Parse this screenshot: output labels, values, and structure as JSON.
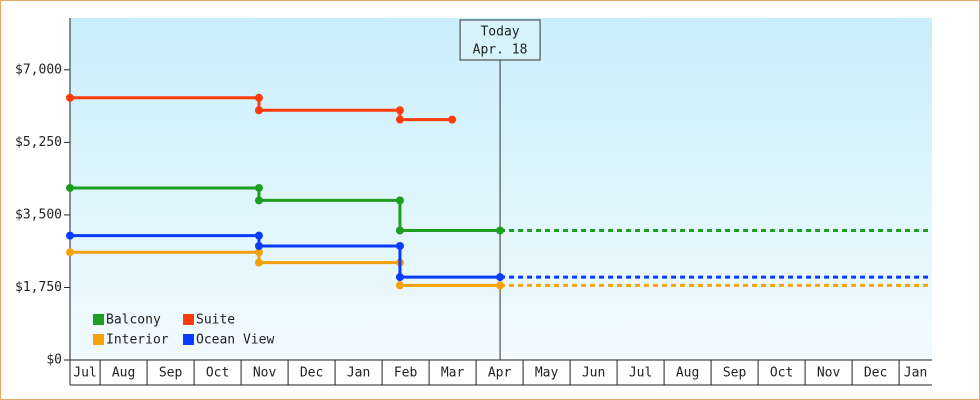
{
  "chart_data": {
    "type": "step-line",
    "xlim": [
      0.36,
      18.7
    ],
    "xticks": [
      {
        "value": 0.5,
        "label": "Jul"
      },
      {
        "value": 1.5,
        "label": "Aug"
      },
      {
        "value": 2.5,
        "label": "Sep"
      },
      {
        "value": 3.5,
        "label": "Oct"
      },
      {
        "value": 4.5,
        "label": "Nov"
      },
      {
        "value": 5.5,
        "label": "Dec"
      },
      {
        "value": 6.5,
        "label": "Jan"
      },
      {
        "value": 7.5,
        "label": "Feb"
      },
      {
        "value": 8.5,
        "label": "Mar"
      },
      {
        "value": 9.5,
        "label": "Apr"
      },
      {
        "value": 10.5,
        "label": "May"
      },
      {
        "value": 11.5,
        "label": "Jun"
      },
      {
        "value": 12.5,
        "label": "Jul"
      },
      {
        "value": 13.5,
        "label": "Aug"
      },
      {
        "value": 14.5,
        "label": "Sep"
      },
      {
        "value": 15.5,
        "label": "Oct"
      },
      {
        "value": 16.5,
        "label": "Nov"
      },
      {
        "value": 17.5,
        "label": "Dec"
      },
      {
        "value": 18.5,
        "label": "Jan"
      }
    ],
    "ylim": [
      0,
      8250
    ],
    "yticks": [
      {
        "value": 0,
        "label": "$0"
      },
      {
        "value": 1750,
        "label": "$1,750"
      },
      {
        "value": 3500,
        "label": "$3,500"
      },
      {
        "value": 5250,
        "label": "$5,250"
      },
      {
        "value": 7000,
        "label": "$7,000"
      }
    ],
    "annotation": {
      "x": 9.51,
      "lines": [
        "Today",
        "Apr. 18"
      ]
    },
    "legend": "bottom-left",
    "series": [
      {
        "name": "Balcony",
        "color": "#1e9e1e",
        "projected": true,
        "x": [
          0.36,
          4.38,
          4.38,
          7.38,
          7.38,
          9.51
        ],
        "values": [
          4150,
          4150,
          3850,
          3850,
          3125,
          3125
        ]
      },
      {
        "name": "Suite",
        "color": "#ff3b0a",
        "projected": false,
        "x": [
          0.36,
          4.38,
          4.38,
          7.38,
          7.38,
          8.49
        ],
        "values": [
          6325,
          6325,
          6025,
          6025,
          5800,
          5800
        ]
      },
      {
        "name": "Interior",
        "color": "#f5a20a",
        "projected": true,
        "x": [
          0.36,
          4.38,
          4.38,
          7.38,
          7.38,
          9.51
        ],
        "values": [
          2600,
          2600,
          2350,
          2350,
          1800,
          1800
        ]
      },
      {
        "name": "Ocean View",
        "color": "#0a3cff",
        "projected": true,
        "x": [
          0.36,
          4.38,
          4.38,
          7.38,
          7.38,
          9.51
        ],
        "values": [
          3000,
          3000,
          2750,
          2750,
          2000,
          2000
        ]
      }
    ]
  }
}
